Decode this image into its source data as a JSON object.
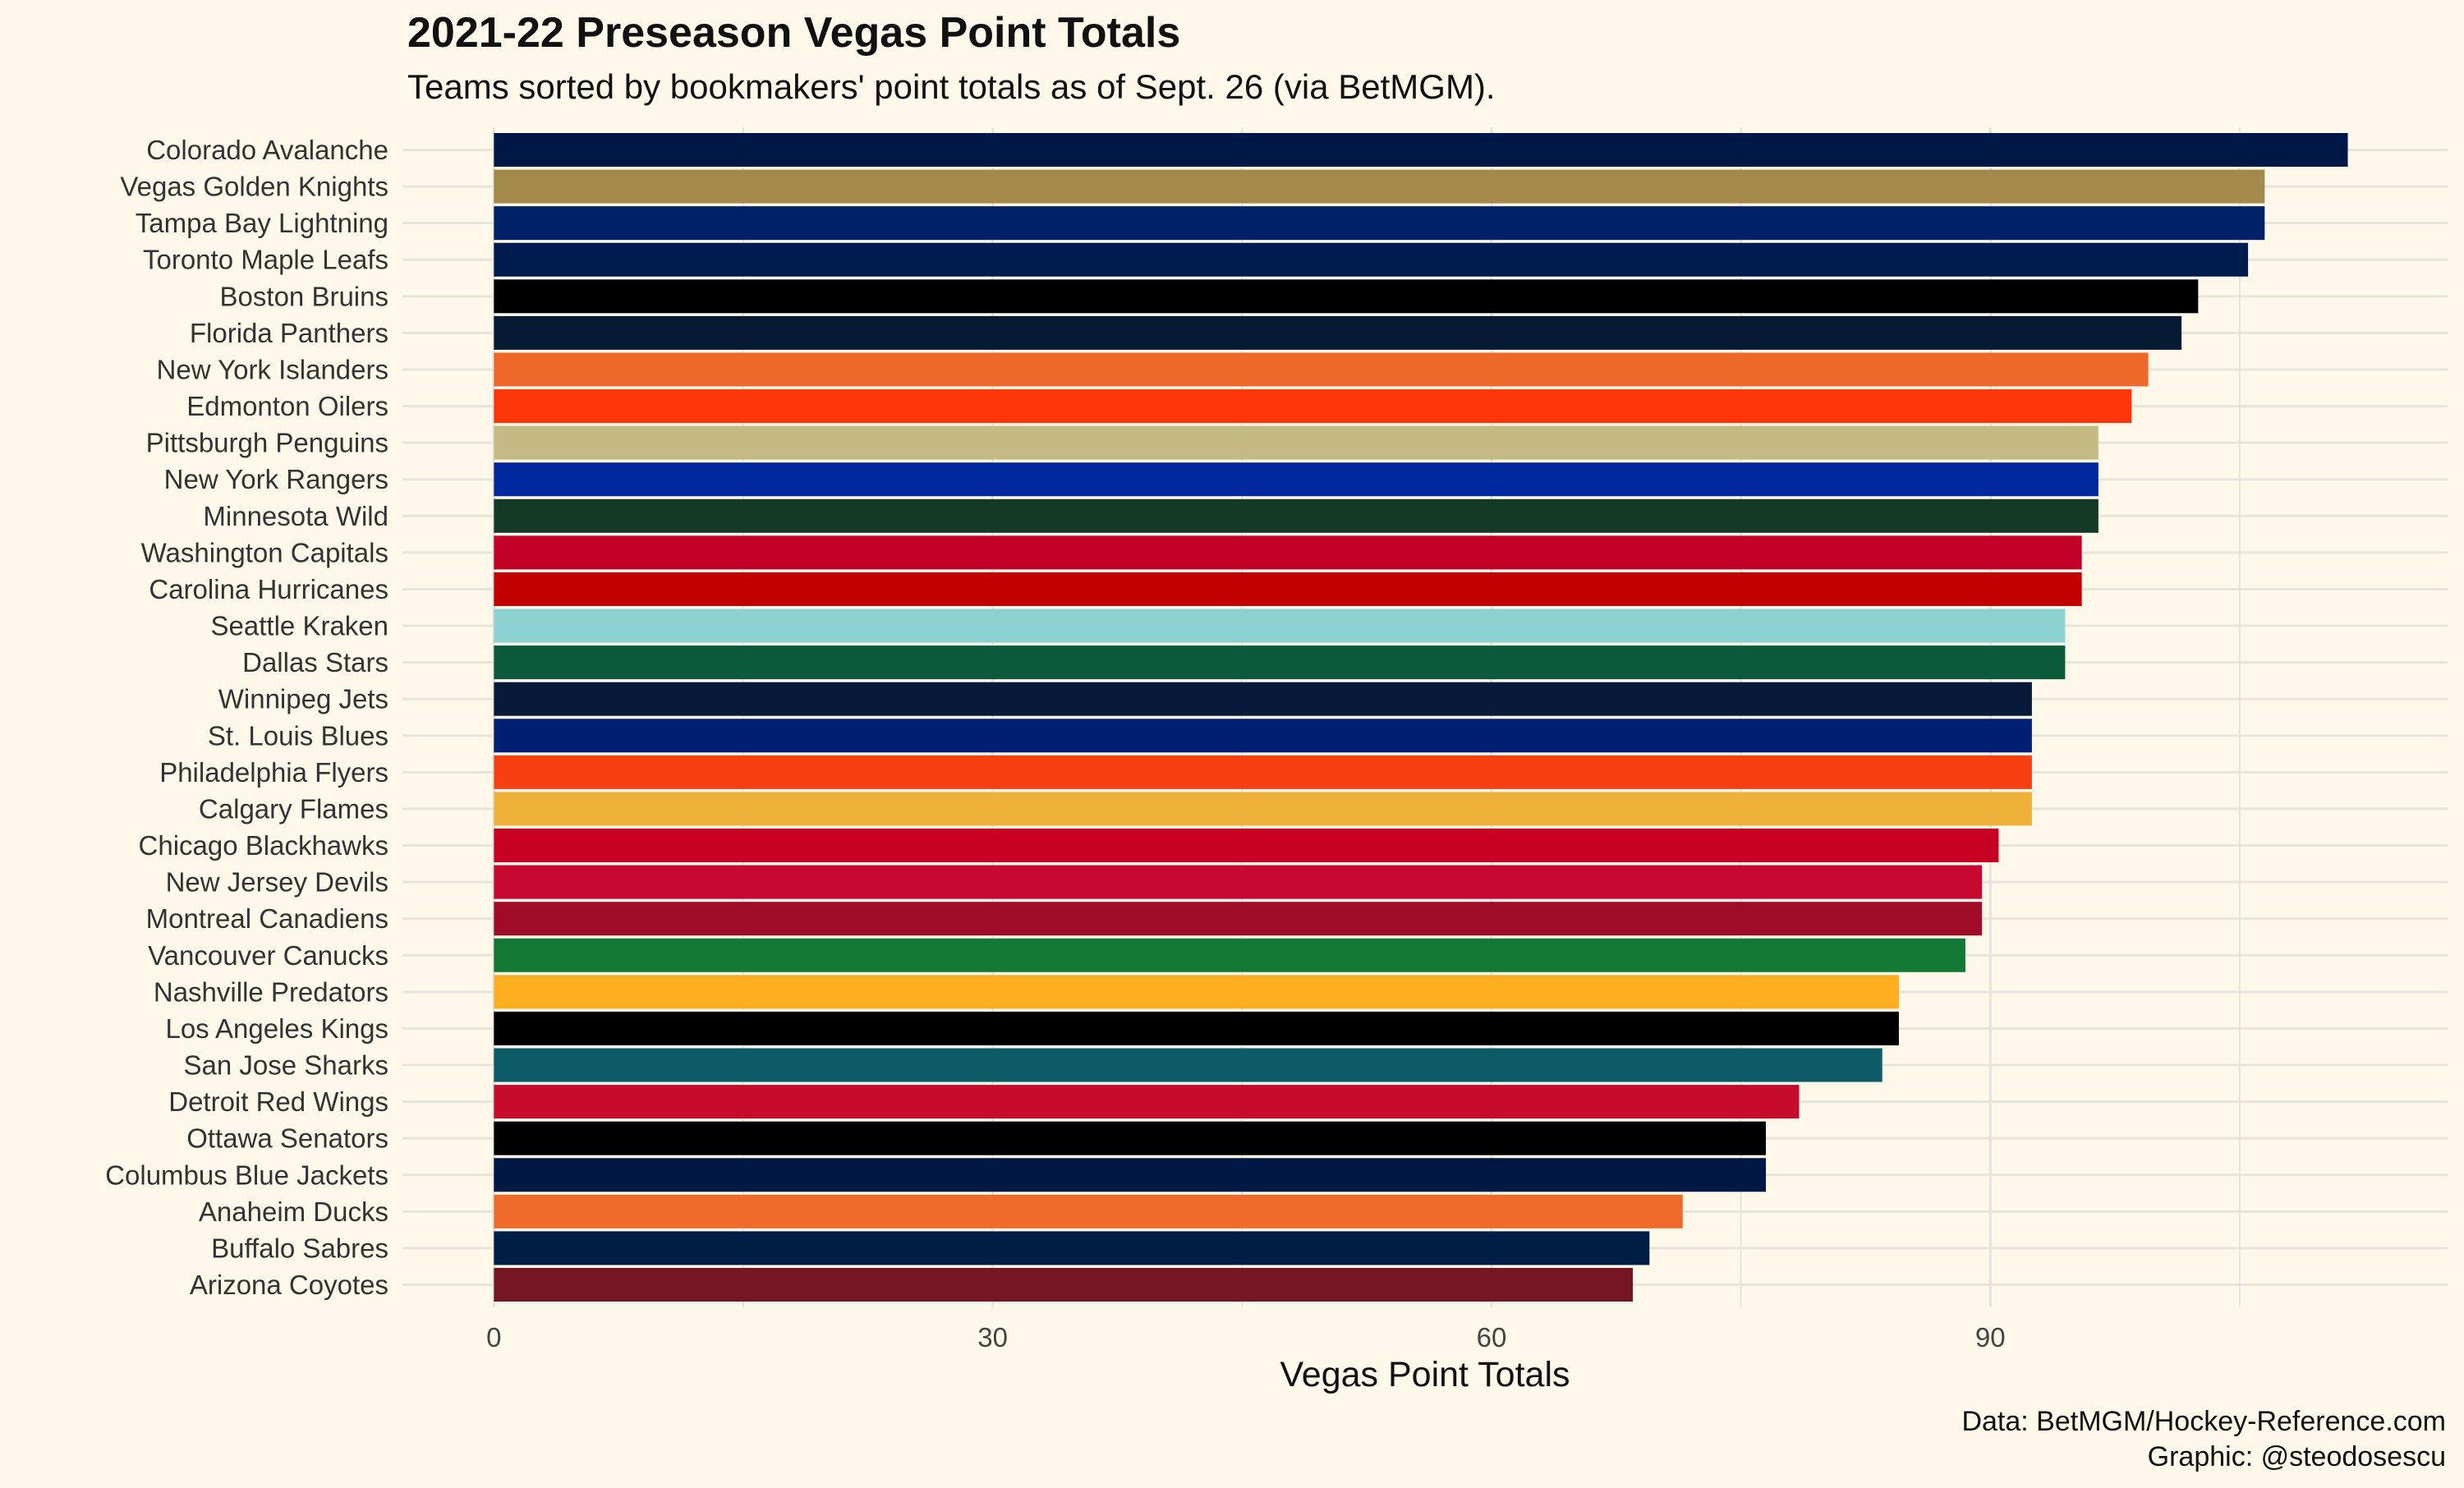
{
  "chart_data": {
    "type": "bar",
    "orientation": "horizontal",
    "title": "2021-22 Preseason Vegas Point Totals",
    "subtitle": "Teams sorted by bookmakers' point totals as of Sept. 26 (via BetMGM).",
    "xlabel": "Vegas Point Totals",
    "ylabel": "",
    "xlim": [
      -5.5,
      117.5
    ],
    "xticks": [
      0,
      30,
      60,
      90
    ],
    "grid": true,
    "legend": "none",
    "categories": [
      "Colorado Avalanche",
      "Vegas Golden Knights",
      "Tampa Bay Lightning",
      "Toronto Maple Leafs",
      "Boston Bruins",
      "Florida Panthers",
      "New York Islanders",
      "Edmonton Oilers",
      "Pittsburgh Penguins",
      "New York Rangers",
      "Minnesota Wild",
      "Washington Capitals",
      "Carolina Hurricanes",
      "Seattle Kraken",
      "Dallas Stars",
      "Winnipeg Jets",
      "St. Louis Blues",
      "Philadelphia Flyers",
      "Calgary Flames",
      "Chicago Blackhawks",
      "New Jersey Devils",
      "Montreal Canadiens",
      "Vancouver Canucks",
      "Nashville Predators",
      "Los Angeles Kings",
      "San Jose Sharks",
      "Detroit Red Wings",
      "Ottawa Senators",
      "Columbus Blue Jackets",
      "Anaheim Ducks",
      "Buffalo Sabres",
      "Arizona Coyotes"
    ],
    "values": [
      111.5,
      106.5,
      106.5,
      105.5,
      102.5,
      101.5,
      99.5,
      98.5,
      96.5,
      96.5,
      96.5,
      95.5,
      95.5,
      94.5,
      94.5,
      92.5,
      92.5,
      92.5,
      92.5,
      90.5,
      89.5,
      89.5,
      88.5,
      84.5,
      84.5,
      83.5,
      78.5,
      76.5,
      76.5,
      71.5,
      69.5,
      68.5
    ],
    "colors": [
      "#001845",
      "#A4894C",
      "#002068",
      "#001C4E",
      "#000000",
      "#061A33",
      "#EE682A",
      "#FF360A",
      "#C5BA84",
      "#0029A0",
      "#143926",
      "#C20026",
      "#C30000",
      "#8DD1D2",
      "#0B5A3C",
      "#08193A",
      "#001F73",
      "#F74012",
      "#EEB23A",
      "#C70024",
      "#C70932",
      "#A00B28",
      "#127833",
      "#FFAE1F",
      "#000000",
      "#0C5B66",
      "#C60B2C",
      "#000000",
      "#001843",
      "#EF6A2B",
      "#001E45",
      "#761622"
    ]
  },
  "caption": {
    "line1": "Data: BetMGM/Hockey-Reference.com",
    "line2": "Graphic: @steodosescu"
  }
}
